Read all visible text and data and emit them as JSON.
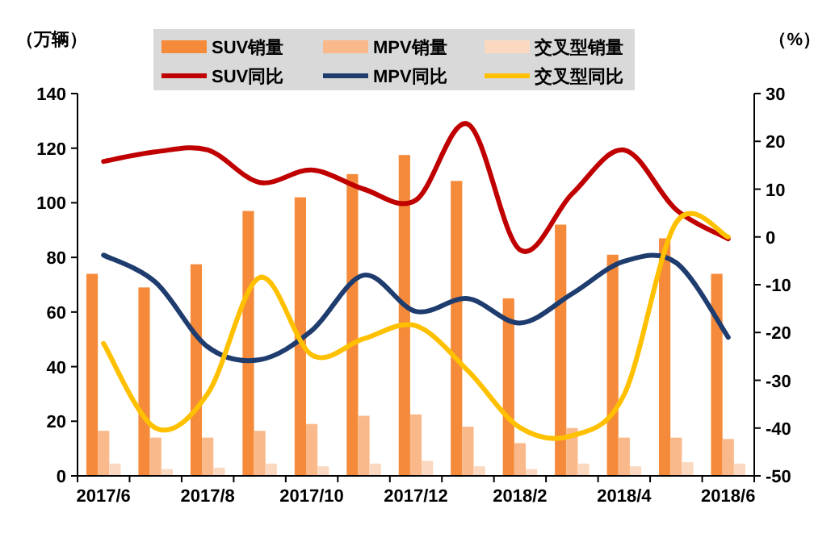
{
  "chart_data": {
    "type": "bar",
    "ylabel": "（万辆）",
    "y2label": "（%）",
    "categories": [
      "2017/6",
      null,
      "2017/8",
      null,
      "2017/10",
      null,
      "2017/12",
      null,
      "2018/2",
      null,
      "2018/4",
      null,
      "2018/6"
    ],
    "ylim": [
      0,
      140
    ],
    "yticks": [
      0,
      20,
      40,
      60,
      80,
      100,
      120,
      140
    ],
    "y2lim": [
      -50,
      30
    ],
    "y2ticks": [
      -50,
      -40,
      -30,
      -20,
      -10,
      0,
      10,
      20,
      30
    ],
    "legend": "top",
    "grid": false,
    "series": [
      {
        "name": "SUV销量",
        "axis": "y",
        "color": "#f58a3a",
        "values": [
          74,
          69,
          77.5,
          97,
          102,
          110.5,
          117.5,
          108,
          65,
          92,
          81,
          87,
          74
        ]
      },
      {
        "name": "MPV销量",
        "axis": "y",
        "color": "#f9b98a",
        "values": [
          16.5,
          14,
          14,
          16.5,
          19,
          22,
          22.5,
          18,
          12,
          17.5,
          14,
          14,
          13.5
        ]
      },
      {
        "name": "交叉型销量",
        "axis": "y",
        "color": "#fbd9c0",
        "values": [
          4.5,
          2.5,
          3,
          4.5,
          3.5,
          4.5,
          5.5,
          3.5,
          2.5,
          4.5,
          3.5,
          5,
          4.5
        ]
      },
      {
        "name": "SUV同比",
        "type": "line",
        "axis": "y2",
        "color": "#c00000",
        "values": [
          15.8,
          17.8,
          18.2,
          11.4,
          14,
          10,
          7.7,
          23.6,
          -2.7,
          9,
          18.2,
          5.7,
          -0.4
        ]
      },
      {
        "name": "MPV同比",
        "type": "line",
        "axis": "y2",
        "color": "#1f3c6e",
        "values": [
          -3.8,
          -9.5,
          -23,
          -25.7,
          -19.6,
          -8,
          -15.6,
          -12.9,
          -18,
          -11.9,
          -5.1,
          -5.4,
          -21
        ]
      },
      {
        "name": "交叉型同比",
        "type": "line",
        "axis": "y2",
        "color": "#ffc000",
        "values": [
          -22.3,
          -40,
          -32.8,
          -8.5,
          -24.7,
          -21.3,
          -18.6,
          -28,
          -39.9,
          -41.6,
          -33,
          3,
          0
        ]
      }
    ]
  }
}
